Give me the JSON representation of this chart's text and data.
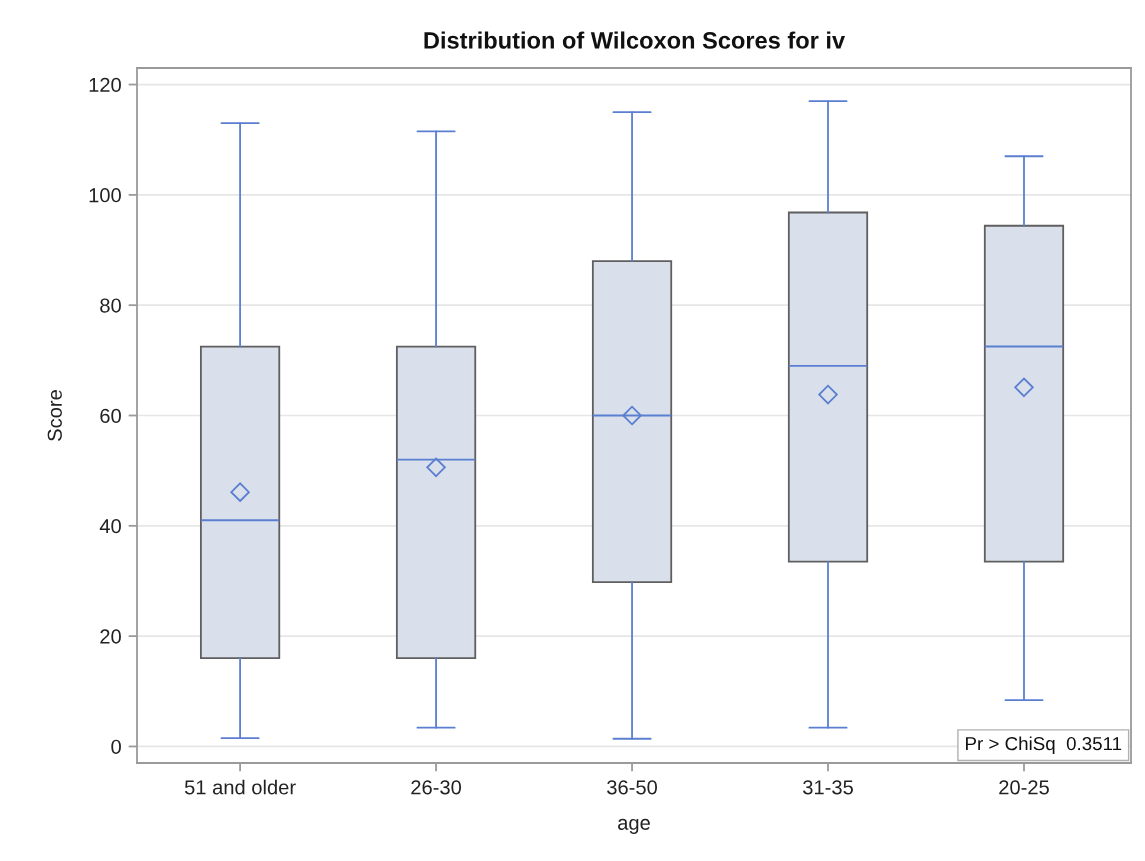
{
  "chart_data": {
    "type": "box",
    "title": "Distribution of Wilcoxon Scores for iv",
    "xlabel": "age",
    "ylabel": "Score",
    "categories": [
      "51 and older",
      "26-30",
      "36-50",
      "31-35",
      "20-25"
    ],
    "color": "#d9e0eb",
    "boxes": [
      {
        "low": 1.5,
        "q1": 16,
        "median": 41,
        "q3": 72.5,
        "high": 113,
        "mean": 46.1
      },
      {
        "low": 3.4,
        "q1": 16,
        "median": 52,
        "q3": 72.5,
        "high": 111.5,
        "mean": 50.6
      },
      {
        "low": 1.4,
        "q1": 29.8,
        "median": 60,
        "q3": 88,
        "high": 115,
        "mean": 60
      },
      {
        "low": 3.4,
        "q1": 33.5,
        "median": 69,
        "q3": 96.8,
        "high": 117,
        "mean": 63.8
      },
      {
        "low": 8.4,
        "q1": 33.5,
        "median": 72.5,
        "q3": 94.4,
        "high": 107,
        "mean": 65.1
      }
    ],
    "ylim": [
      -3,
      123
    ],
    "yticks": [
      0,
      20,
      40,
      60,
      80,
      100,
      120
    ],
    "grid": "y",
    "marker": "diamond",
    "annotations": [
      "Pr > ChiSq  0.3511"
    ]
  }
}
